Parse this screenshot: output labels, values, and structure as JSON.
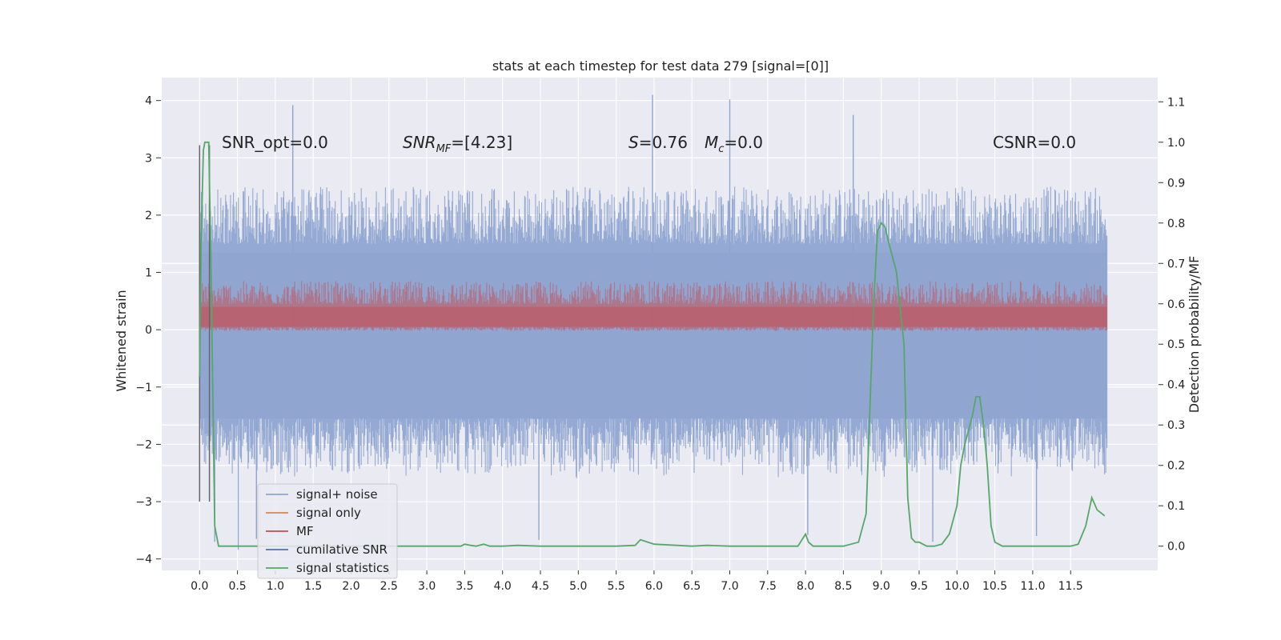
{
  "chart_data": {
    "type": "line",
    "title": "stats at each timestep for test data 279 [signal=[0]]",
    "ylabel": "Whitened strain",
    "ylabel_right": "Detection probability/MF",
    "xlim": [
      -0.5,
      12.65
    ],
    "ylim": [
      -4.2,
      4.4
    ],
    "ylim_right": [
      -0.06,
      1.16
    ],
    "x_ticks": [
      0.0,
      0.5,
      1.0,
      1.5,
      2.0,
      2.5,
      3.0,
      3.5,
      4.0,
      4.5,
      5.0,
      5.5,
      6.0,
      6.5,
      7.0,
      7.5,
      8.0,
      8.5,
      9.0,
      9.5,
      10.0,
      10.5,
      11.0,
      11.5
    ],
    "x_tick_labels": [
      "0.0",
      "0.5",
      "1.0",
      "1.5",
      "2.0",
      "2.5",
      "3.0",
      "3.5",
      "4.0",
      "4.5",
      "5.0",
      "5.5",
      "6.0",
      "6.5",
      "7.0",
      "7.5",
      "8.0",
      "8.5",
      "9.0",
      "9.5",
      "10.0",
      "10.5",
      "11.0",
      "11.5"
    ],
    "y_ticks": [
      -4,
      -3,
      -2,
      -1,
      0,
      1,
      2,
      3,
      4
    ],
    "y_tick_labels": [
      "−4",
      "−3",
      "−2",
      "−1",
      "0",
      "1",
      "2",
      "3",
      "4"
    ],
    "y_right_ticks": [
      0.0,
      0.1,
      0.2,
      0.3,
      0.4,
      0.5,
      0.6,
      0.7,
      0.8,
      0.9,
      1.0,
      1.1
    ],
    "y_right_tick_labels": [
      "0.0",
      "0.1",
      "0.2",
      "0.3",
      "0.4",
      "0.5",
      "0.6",
      "0.7",
      "0.8",
      "0.9",
      "1.0",
      "1.1"
    ],
    "grid": true,
    "legend_position": "lower-left",
    "annotations": {
      "snr_opt": "SNR_opt=0.0",
      "snr_mf_base": "SNR",
      "snr_mf_sub": "MF",
      "snr_mf_value": "=[4.23]",
      "s_symbol": "S",
      "s_value": "=0.76",
      "mc_base": "M",
      "mc_sub": "c",
      "mc_value": "=0.0",
      "csnr": "CSNR=0.0"
    },
    "series": [
      {
        "name": "signal+ noise",
        "color": "#8fa5d1",
        "axis": "left",
        "x_range": [
          0.0,
          11.98
        ],
        "band_upper": [
          1.5,
          2.5
        ],
        "band_lower": [
          -2.6,
          -1.5
        ],
        "peaks": [
          {
            "x": 1.23,
            "y": 3.92
          },
          {
            "x": 5.98,
            "y": 4.1
          },
          {
            "x": 7.0,
            "y": 4.02
          },
          {
            "x": 8.63,
            "y": 3.75
          },
          {
            "x": 0.2,
            "y": -3.7
          },
          {
            "x": 0.51,
            "y": -3.84
          },
          {
            "x": 0.75,
            "y": -3.65
          },
          {
            "x": 4.48,
            "y": -3.67
          },
          {
            "x": 8.03,
            "y": -3.58
          },
          {
            "x": 9.68,
            "y": -3.7
          },
          {
            "x": 11.05,
            "y": -3.6
          }
        ]
      },
      {
        "name": "signal only",
        "color": "#dd8452",
        "axis": "left",
        "values_constant": 0.0
      },
      {
        "name": "MF",
        "color": "#c44e52",
        "axis": "left",
        "x_range": [
          0.0,
          11.98
        ],
        "band_upper": [
          0.45,
          0.85
        ],
        "band_lower": [
          -0.02,
          0.05
        ]
      },
      {
        "name": "cumilative SNR",
        "color": "#4c72b0",
        "axis": "right"
      },
      {
        "name": "signal statistics",
        "color": "#55a868",
        "axis": "right",
        "x": [
          0.0,
          0.02,
          0.05,
          0.07,
          0.12,
          0.15,
          0.2,
          0.25,
          0.3,
          0.4,
          0.6,
          1.0,
          2.0,
          3.0,
          3.45,
          3.5,
          3.58,
          3.65,
          3.75,
          3.83,
          4.0,
          4.2,
          4.5,
          5.0,
          5.5,
          5.75,
          5.82,
          6.0,
          6.5,
          6.7,
          7.0,
          7.5,
          7.9,
          7.95,
          8.0,
          8.04,
          8.1,
          8.3,
          8.5,
          8.7,
          8.8,
          8.9,
          8.95,
          9.0,
          9.05,
          9.1,
          9.2,
          9.3,
          9.35,
          9.4,
          9.45,
          9.5,
          9.6,
          9.7,
          9.8,
          9.9,
          10.0,
          10.05,
          10.1,
          10.2,
          10.25,
          10.3,
          10.35,
          10.4,
          10.45,
          10.5,
          10.6,
          10.8,
          11.0,
          11.3,
          11.4,
          11.45,
          11.5,
          11.6,
          11.7,
          11.78,
          11.85,
          11.95
        ],
        "values": [
          0.42,
          0.75,
          0.98,
          1.0,
          1.0,
          0.7,
          0.05,
          0.0,
          0.0,
          0.0,
          0.0,
          0.0,
          0.0,
          0.0,
          0.0,
          0.005,
          0.002,
          0.0,
          0.005,
          0.0,
          0.0,
          0.002,
          0.0,
          0.0,
          0.0,
          0.002,
          0.016,
          0.005,
          0.0,
          0.002,
          0.0,
          0.0,
          0.0,
          0.015,
          0.03,
          0.01,
          0.0,
          0.0,
          0.0,
          0.01,
          0.08,
          0.6,
          0.78,
          0.8,
          0.79,
          0.75,
          0.68,
          0.5,
          0.12,
          0.02,
          0.01,
          0.01,
          0.0,
          0.0,
          0.005,
          0.03,
          0.1,
          0.2,
          0.25,
          0.32,
          0.37,
          0.37,
          0.3,
          0.2,
          0.05,
          0.01,
          0.0,
          0.0,
          0.0,
          0.0,
          0.0,
          0.0,
          0.0,
          0.005,
          0.05,
          0.12,
          0.09,
          0.075
        ]
      }
    ],
    "grey_lines": [
      {
        "x": 0.0,
        "y_top": 3.22,
        "y_bottom": -3.0
      },
      {
        "x": 0.13,
        "y_top": 3.22,
        "y_bottom": -3.0
      }
    ],
    "grid_right_lines": [
      0.7,
      0.4,
      0.3,
      0.2
    ]
  },
  "colors": {
    "plot_bg": "#eaeaf2",
    "grid": "#ffffff",
    "text": "#222222",
    "legend_bg": "#eaeaf2",
    "legend_border": "#cccccc"
  }
}
